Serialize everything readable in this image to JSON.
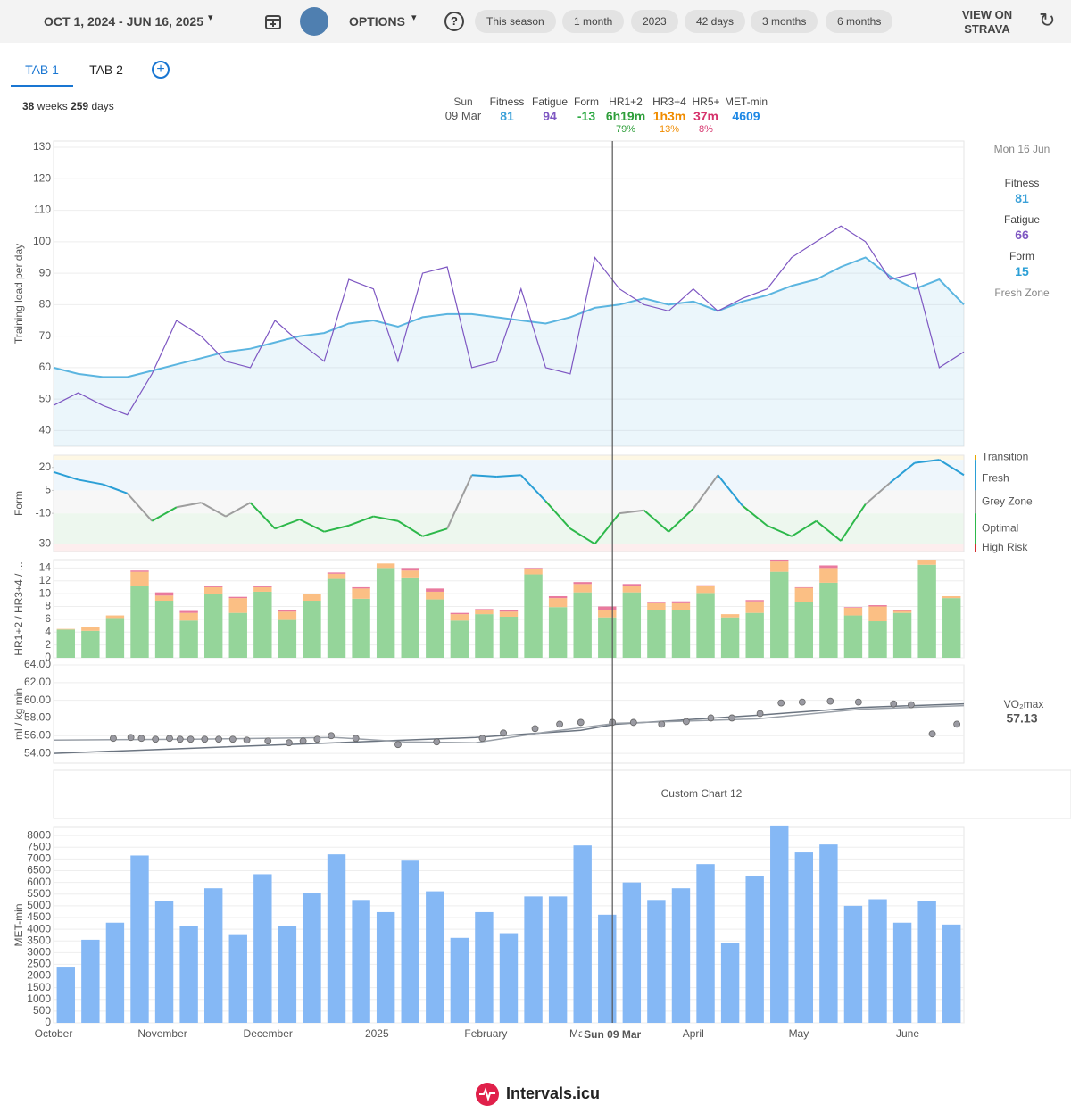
{
  "toolbar": {
    "date_range": "OCT 1, 2024 - JUN 16, 2025",
    "options": "OPTIONS",
    "presets": [
      "This season",
      "1 month",
      "2023",
      "42 days",
      "3 months",
      "6 months"
    ],
    "view_on": "VIEW ON STRAVA"
  },
  "tabs": [
    "TAB 1",
    "TAB 2"
  ],
  "summary": {
    "weeks": 38,
    "weeks_unit": "weeks",
    "days": 259,
    "days_unit": "days"
  },
  "cursor_info": {
    "day": "Sun",
    "date": "09 Mar",
    "items": [
      {
        "label": "Fitness",
        "value": "81",
        "color": "#3aa0d8"
      },
      {
        "label": "Fatigue",
        "value": "94",
        "color": "#7e57c2"
      },
      {
        "label": "Form",
        "value": "-13",
        "color": "#2faa45"
      },
      {
        "label": "HR1+2",
        "value": "6h19m",
        "percent": "79%",
        "color": "#2e9e3a"
      },
      {
        "label": "HR3+4",
        "value": "1h3m",
        "percent": "13%",
        "color": "#f08c00"
      },
      {
        "label": "HR5+",
        "value": "37m",
        "percent": "8%",
        "color": "#d6336c"
      },
      {
        "label": "MET-min",
        "value": "4609",
        "color": "#1e88e5"
      }
    ]
  },
  "side_info": {
    "date": "Mon 16 Jun",
    "items": [
      {
        "label": "Fitness",
        "value": "81",
        "color": "#3aa0d8"
      },
      {
        "label": "Fatigue",
        "value": "66",
        "color": "#7e57c2"
      },
      {
        "label": "Form",
        "value": "15",
        "color": "#2a9fd6"
      }
    ],
    "zone": "Fresh Zone"
  },
  "x_axis": {
    "xlim": [
      0,
      259
    ],
    "xticks": [
      {
        "value": 0,
        "label": "October"
      },
      {
        "value": 31,
        "label": "November"
      },
      {
        "value": 61,
        "label": "December"
      },
      {
        "value": 92,
        "label": "2025"
      },
      {
        "value": 123,
        "label": "February"
      },
      {
        "value": 151,
        "label": "March"
      },
      {
        "value": 182,
        "label": "April"
      },
      {
        "value": 212,
        "label": "May"
      },
      {
        "value": 243,
        "label": "June"
      }
    ],
    "cursor": 159,
    "cursor_label": "Sun 09 Mar"
  },
  "chart_data": [
    {
      "type": "line",
      "ylabel": "Training load per day",
      "ylim": [
        35,
        132
      ],
      "yticks": [
        40,
        50,
        60,
        70,
        80,
        90,
        100,
        110,
        120,
        130
      ],
      "grid": true,
      "x": [
        0,
        7,
        14,
        21,
        28,
        35,
        42,
        49,
        56,
        63,
        70,
        77,
        84,
        91,
        98,
        105,
        112,
        119,
        126,
        133,
        140,
        147,
        154,
        161,
        168,
        175,
        182,
        189,
        196,
        203,
        210,
        217,
        224,
        231,
        238,
        245,
        252,
        259
      ],
      "series": [
        {
          "name": "Fitness",
          "color": "#5bb5e0",
          "fill": true,
          "values": [
            60,
            58,
            57,
            57,
            59,
            61,
            63,
            65,
            66,
            68,
            70,
            71,
            74,
            75,
            73,
            76,
            77,
            77,
            76,
            75,
            74,
            76,
            79,
            80,
            82,
            80,
            81,
            78,
            81,
            83,
            86,
            88,
            92,
            95,
            89,
            85,
            88,
            80
          ]
        },
        {
          "name": "Fatigue",
          "color": "#7e57c2",
          "fill": false,
          "values": [
            48,
            52,
            48,
            45,
            58,
            75,
            70,
            62,
            60,
            75,
            68,
            62,
            88,
            85,
            62,
            90,
            92,
            60,
            62,
            85,
            60,
            58,
            95,
            85,
            80,
            78,
            85,
            78,
            82,
            85,
            95,
            100,
            105,
            100,
            88,
            90,
            60,
            65
          ]
        }
      ]
    },
    {
      "type": "form",
      "ylabel": "Form",
      "ylim": [
        -35,
        28
      ],
      "yticks": [
        20,
        5,
        -10,
        -30
      ],
      "grid": false,
      "x": [
        0,
        7,
        14,
        21,
        28,
        35,
        42,
        49,
        56,
        63,
        70,
        77,
        84,
        91,
        98,
        105,
        112,
        119,
        126,
        133,
        140,
        147,
        154,
        161,
        168,
        175,
        182,
        189,
        196,
        203,
        210,
        217,
        224,
        231,
        238,
        245,
        252,
        259
      ],
      "values": [
        17,
        12,
        9,
        3,
        -15,
        -6,
        -3,
        -12,
        -3,
        -20,
        -14,
        -22,
        -18,
        -12,
        -15,
        -25,
        -20,
        15,
        14,
        15,
        -2,
        -20,
        -30,
        -10,
        -8,
        -22,
        -7,
        15,
        -5,
        -18,
        -25,
        -15,
        -28,
        -4,
        10,
        23,
        25,
        15
      ],
      "zones": [
        {
          "label": "Transition",
          "from": 25,
          "to": 28,
          "color": "#e6a700",
          "bg": "#fdf7e4"
        },
        {
          "label": "Fresh",
          "from": 5,
          "to": 25,
          "color": "#2a9fd6",
          "bg": "#eef6fc"
        },
        {
          "label": "Grey Zone",
          "from": -10,
          "to": 5,
          "color": "#9e9e9e",
          "bg": "#f7f7f7"
        },
        {
          "label": "Optimal",
          "from": -30,
          "to": -10,
          "color": "#2db84a",
          "bg": "#edf7ee"
        },
        {
          "label": "High Risk",
          "from": -35,
          "to": -30,
          "color": "#d32f2f",
          "bg": "#fdeeee"
        }
      ]
    },
    {
      "type": "stacked_bar",
      "ylabel": "HR1+2 / HR3+4 / ...",
      "ylim": [
        0,
        15.3
      ],
      "yticks": [
        0,
        2,
        4,
        6,
        8,
        10,
        12,
        14
      ],
      "grid": true,
      "series": [
        {
          "name": "HR1+2",
          "color": "#95d59a",
          "values": [
            4.4,
            4.2,
            6.2,
            11.2,
            8.9,
            5.8,
            10,
            7,
            10.3,
            5.9,
            8.9,
            12.3,
            9.2,
            14,
            12.4,
            9.1,
            5.8,
            6.8,
            6.4,
            13,
            7.9,
            10.2,
            6.3,
            10.2,
            7.5,
            7.5,
            10.1,
            6.3,
            7,
            13.4,
            8.7,
            11.7,
            6.6,
            5.7,
            7,
            14.5,
            9.3
          ]
        },
        {
          "name": "HR3+4",
          "color": "#fbbf84",
          "values": [
            0.1,
            0.6,
            0.4,
            2.2,
            0.8,
            1.2,
            1,
            2.3,
            0.7,
            1.3,
            1,
            0.8,
            1.6,
            0.7,
            1.2,
            1.2,
            1,
            0.7,
            0.8,
            0.8,
            1.4,
            1.3,
            1.2,
            1,
            1,
            1,
            1.1,
            0.5,
            1.8,
            1.6,
            2.2,
            2.3,
            1.2,
            2.3,
            0.3,
            0.8,
            0.3
          ]
        },
        {
          "name": "HR5+",
          "color": "#e97a9e",
          "values": [
            0,
            0,
            0,
            0.2,
            0.5,
            0.3,
            0.2,
            0.2,
            0.2,
            0.2,
            0.1,
            0.2,
            0.2,
            0,
            0.4,
            0.5,
            0.2,
            0.1,
            0.2,
            0.2,
            0.3,
            0.3,
            0.5,
            0.3,
            0.1,
            0.3,
            0.1,
            0,
            0.2,
            0.3,
            0.1,
            0.4,
            0.1,
            0.2,
            0.1,
            0,
            0
          ]
        }
      ]
    },
    {
      "type": "scatter",
      "ylabel": "ml / kg min",
      "ylim": [
        52.9,
        64
      ],
      "yticks": [
        {
          "value": 54,
          "label": "54.00"
        },
        {
          "value": 56,
          "label": "56.00"
        },
        {
          "value": 58,
          "label": "58.00"
        },
        {
          "value": 60,
          "label": "60.00"
        },
        {
          "value": 62,
          "label": "62.00"
        },
        {
          "value": 64,
          "label": "64.00"
        }
      ],
      "grid": true,
      "color": "#9a9aa2",
      "x": [
        17,
        22,
        25,
        29,
        33,
        36,
        39,
        43,
        47,
        51,
        55,
        61,
        67,
        71,
        75,
        79,
        86,
        98,
        109,
        122,
        128,
        137,
        144,
        150,
        159,
        165,
        173,
        180,
        187,
        193,
        201,
        207,
        213,
        221,
        229,
        239,
        244,
        250,
        257
      ],
      "values": [
        55.7,
        55.8,
        55.7,
        55.6,
        55.7,
        55.6,
        55.6,
        55.6,
        55.6,
        55.6,
        55.5,
        55.4,
        55.2,
        55.4,
        55.6,
        56,
        55.7,
        55,
        55.3,
        55.7,
        56.3,
        56.8,
        57.3,
        57.5,
        57.5,
        57.5,
        57.3,
        57.6,
        58,
        58,
        58.5,
        59.7,
        59.8,
        59.9,
        59.8,
        59.6,
        59.5,
        56.2,
        57.3
      ],
      "trends": [
        {
          "x": [
            0,
            40,
            80,
            120,
            150,
            160,
            200,
            230,
            259
          ],
          "y": [
            54,
            54.6,
            55.2,
            55.8,
            56.6,
            57.3,
            58.3,
            59.2,
            59.6
          ]
        },
        {
          "x": [
            0,
            40,
            80,
            100,
            120,
            140,
            160,
            200,
            230,
            259
          ],
          "y": [
            55.5,
            55.6,
            55.8,
            55.3,
            55.2,
            56.4,
            57.4,
            57.9,
            59,
            59.4
          ]
        }
      ],
      "metric": {
        "label": "VO₂max",
        "value": "57.13"
      }
    },
    {
      "type": "placeholder",
      "title": "Custom Chart 12"
    },
    {
      "type": "bar",
      "ylabel": "MET-min",
      "ylim": [
        0,
        8350
      ],
      "yticks": [
        0,
        500,
        1000,
        1500,
        2000,
        2500,
        3000,
        3500,
        4000,
        4500,
        5000,
        5500,
        6000,
        6500,
        7000,
        7500,
        8000
      ],
      "grid": true,
      "color": "#85b8f5",
      "values": [
        2400,
        3550,
        4280,
        7150,
        5200,
        4130,
        5750,
        3750,
        6350,
        4130,
        5530,
        7200,
        5250,
        4730,
        6930,
        5620,
        3630,
        4730,
        3830,
        5400,
        5400,
        7580,
        4620,
        6000,
        5250,
        5750,
        6780,
        3400,
        6280,
        8430,
        7280,
        7620,
        5000,
        5280,
        4280,
        5200,
        4200
      ]
    }
  ],
  "footer": "Intervals.icu"
}
